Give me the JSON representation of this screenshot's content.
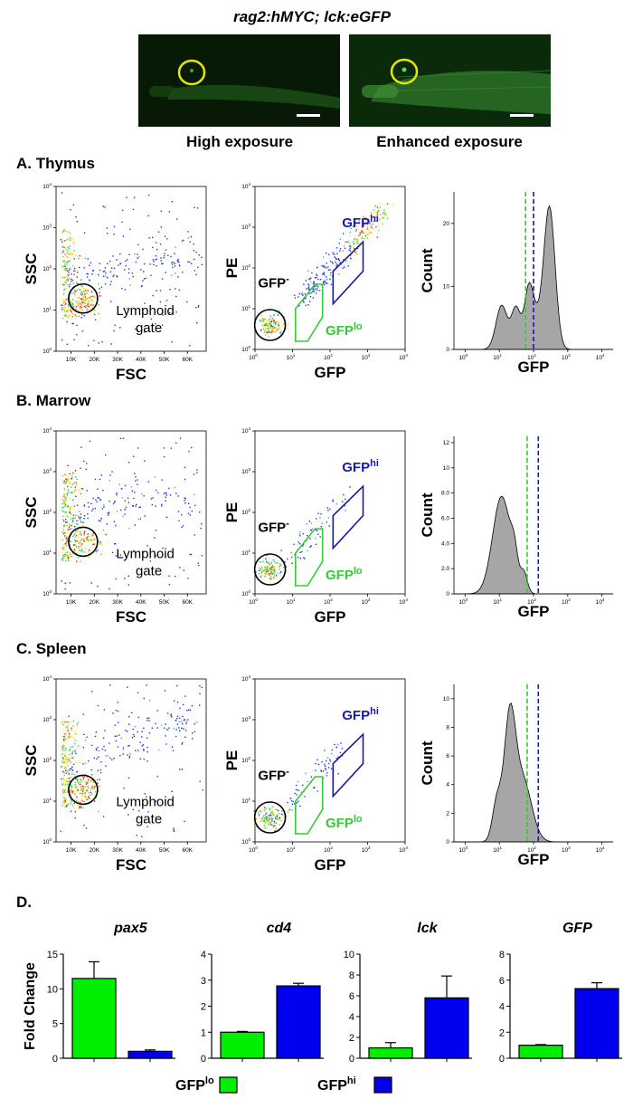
{
  "header": {
    "title": "rag2:hMYC; lck:eGFP",
    "images": [
      {
        "caption": "High exposure"
      },
      {
        "caption": "Enhanced exposure"
      }
    ]
  },
  "colors": {
    "gfp_lo": "#33cc33",
    "gfp_hi": "#1a1aa8",
    "gate_yellow": "#e6e600",
    "hist_fill": "#a6a6a6",
    "green_bar": "#00ee00",
    "blue_bar": "#0000ee"
  },
  "panels": {
    "A": {
      "label": "A. Thymus"
    },
    "B": {
      "label": "B. Marrow"
    },
    "C": {
      "label": "C. Spleen"
    },
    "D": {
      "label": "D."
    }
  },
  "flow": {
    "scatter_fsc_xticks": [
      "10K",
      "20K",
      "30K",
      "40K",
      "50K",
      "60K"
    ],
    "log_ticks": [
      "10",
      "10",
      "10",
      "10",
      "10"
    ],
    "log_exps": [
      "0",
      "1",
      "2",
      "3",
      "4"
    ],
    "hist_xticks": [
      "10",
      "10",
      "10",
      "10",
      "10"
    ],
    "hist_xexps": [
      "0",
      "1",
      "2",
      "3",
      "4"
    ],
    "labels": {
      "ssc": "SSC",
      "fsc": "FSC",
      "pe": "PE",
      "gfp": "GFP",
      "count": "Count",
      "lymphoid1": "Lymphoid",
      "lymphoid2": "gate",
      "gfp_neg": "GFP",
      "gfp_neg_sup": "-",
      "gfp_lo": "GFP",
      "gfp_lo_sup": "lo",
      "gfp_hi": "GFP",
      "gfp_hi_sup": "hi"
    },
    "rows": [
      {
        "panel": "A",
        "hist_yticks": [
          "0",
          "10",
          "20"
        ],
        "hist_ymax": 25
      },
      {
        "panel": "B",
        "hist_yticks": [
          "0",
          "2.0",
          "4.0",
          "6.0",
          "8.0",
          "10",
          "12"
        ],
        "hist_ymax": 12.5
      },
      {
        "panel": "C",
        "hist_yticks": [
          "0",
          "2",
          "4",
          "6",
          "8",
          "10"
        ],
        "hist_ymax": 11
      }
    ]
  },
  "chart_data": [
    {
      "type": "bar",
      "title": "pax5",
      "ylabel": "Fold Change",
      "categories": [
        "GFPlo",
        "GFPhi"
      ],
      "values": [
        11.5,
        1.0
      ],
      "errors": [
        2.4,
        0.2
      ],
      "ylim": [
        0,
        15
      ],
      "yticks": [
        "0",
        "5",
        "10",
        "15"
      ]
    },
    {
      "type": "bar",
      "title": "cd4",
      "ylabel": "",
      "categories": [
        "GFPlo",
        "GFPhi"
      ],
      "values": [
        1.0,
        2.78
      ],
      "errors": [
        0.03,
        0.1
      ],
      "ylim": [
        0,
        4
      ],
      "yticks": [
        "0",
        "1",
        "2",
        "3",
        "4"
      ]
    },
    {
      "type": "bar",
      "title": "lck",
      "ylabel": "",
      "categories": [
        "GFPlo",
        "GFPhi"
      ],
      "values": [
        1.0,
        5.8
      ],
      "errors": [
        0.5,
        2.1
      ],
      "ylim": [
        0,
        10
      ],
      "yticks": [
        "0",
        "2",
        "4",
        "6",
        "8",
        "10"
      ]
    },
    {
      "type": "bar",
      "title": "GFP",
      "ylabel": "",
      "categories": [
        "GFPlo",
        "GFPhi"
      ],
      "values": [
        1.0,
        5.35
      ],
      "errors": [
        0.05,
        0.45
      ],
      "ylim": [
        0,
        8
      ],
      "yticks": [
        "0",
        "2",
        "4",
        "6",
        "8"
      ]
    }
  ],
  "legend": {
    "lo_label": "GFP",
    "lo_sup": "lo",
    "hi_label": "GFP",
    "hi_sup": "hi"
  }
}
